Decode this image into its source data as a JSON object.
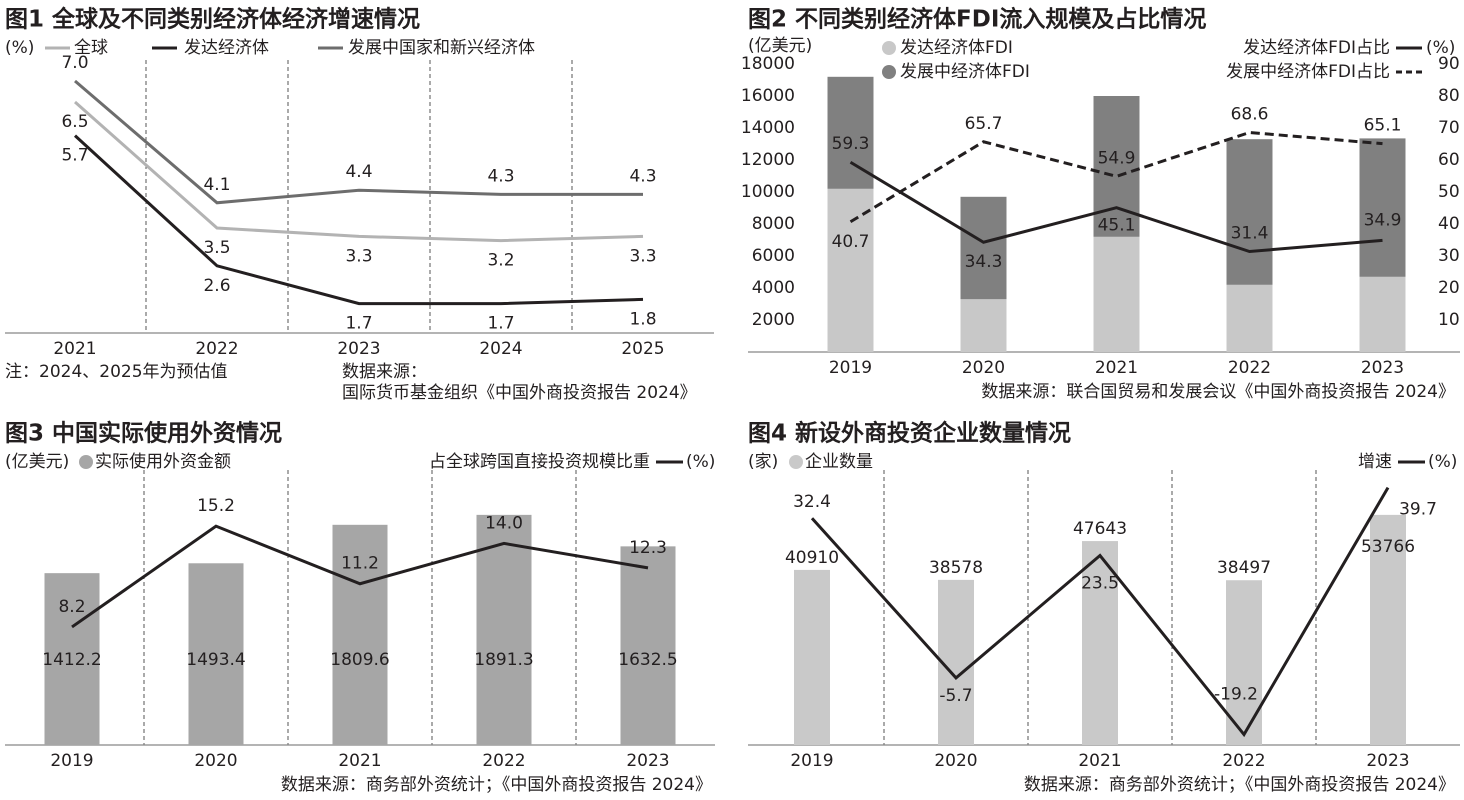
{
  "chart_data": [
    {
      "type": "line",
      "title": "图1 全球及不同类别经济体经济增速情况",
      "unit_label": "(%)",
      "categories": [
        "2021",
        "2022",
        "2023",
        "2024",
        "2025"
      ],
      "series": [
        {
          "name": "全球",
          "color": "#b3b3b3",
          "values": [
            6.5,
            3.5,
            3.3,
            3.2,
            3.3
          ]
        },
        {
          "name": "发达经济体",
          "color": "#231f20",
          "values": [
            5.7,
            2.6,
            1.7,
            1.7,
            1.8
          ]
        },
        {
          "name": "发展中国家和新兴经济体",
          "color": "#6d6d6d",
          "values": [
            7.0,
            4.1,
            4.4,
            4.3,
            4.3
          ],
          "value_labels": [
            "7.0",
            "4.1",
            "4.4",
            "4.3",
            "4.3"
          ]
        }
      ],
      "ylim": [
        1,
        7.5
      ],
      "note": "注：2024、2025年为预估值",
      "source": [
        "数据来源：",
        "国际货币基金组织《中国外商投资报告 2024》"
      ]
    },
    {
      "type": "stacked_bar_line",
      "title": "图2 不同类别经济体FDI流入规模及占比情况",
      "y_label": "(亿美元)",
      "y2_label": "(%)",
      "categories": [
        "2019",
        "2020",
        "2021",
        "2022",
        "2023"
      ],
      "series": [
        {
          "name": "发达经济体FDI",
          "color": "#c8c8c8",
          "values": [
            10200,
            3300,
            7200,
            4200,
            4700
          ]
        },
        {
          "name": "发展中经济体FDI",
          "color": "#808080",
          "values": [
            7000,
            6400,
            8800,
            9100,
            8650
          ]
        },
        {
          "name": "发达经济体FDI占比",
          "color": "#231f20",
          "axis": "y2",
          "line_style": "solid",
          "values": [
            59.3,
            34.3,
            45.1,
            31.4,
            34.9
          ]
        },
        {
          "name": "发展中经济体FDI占比",
          "color": "#231f20",
          "axis": "y2",
          "line_style": "dashed",
          "values": [
            40.7,
            65.7,
            54.9,
            68.6,
            65.1
          ]
        }
      ],
      "ylim": [
        0,
        18000
      ],
      "yticks": [
        2000,
        4000,
        6000,
        8000,
        10000,
        12000,
        14000,
        16000,
        18000
      ],
      "y2lim": [
        0,
        90
      ],
      "y2ticks": [
        10,
        20,
        30,
        40,
        50,
        60,
        70,
        80,
        90
      ],
      "source": "数据来源：联合国贸易和发展会议《中国外商投资报告 2024》"
    },
    {
      "type": "bar_line",
      "title": "图3 中国实际使用外资情况",
      "y_label": "(亿美元)",
      "y2_label": "(%)",
      "categories": [
        "2019",
        "2020",
        "2021",
        "2022",
        "2023"
      ],
      "series": [
        {
          "name": "实际使用外资金额",
          "color": "#a6a6a6",
          "values": [
            1412.2,
            1493.4,
            1809.6,
            1891.3,
            1632.5
          ]
        },
        {
          "name": "占全球跨国直接投资规模比重",
          "color": "#231f20",
          "axis": "y2",
          "values": [
            8.2,
            15.2,
            11.2,
            14.0,
            12.3
          ],
          "value_labels": [
            "8.2",
            "15.2",
            "11.2",
            "14.0",
            "12.3"
          ]
        }
      ],
      "ylim": [
        0,
        2260
      ],
      "y2lim": [
        0,
        19.1
      ],
      "source": "数据来源：商务部外资统计；《中国外商投资报告 2024》"
    },
    {
      "type": "bar_line",
      "title": "图4 新设外商投资企业数量情况",
      "y_label": "(家)",
      "y2_label": "(%)",
      "categories": [
        "2019",
        "2020",
        "2021",
        "2022",
        "2023"
      ],
      "series": [
        {
          "name": "企业数量",
          "color": "#c9c9c9",
          "values": [
            40910,
            38578,
            47643,
            38497,
            53766
          ]
        },
        {
          "name": "增速",
          "color": "#231f20",
          "axis": "y2",
          "values": [
            32.4,
            -5.7,
            23.5,
            -19.2,
            39.7
          ]
        }
      ],
      "ylim": [
        0,
        64250
      ],
      "y2lim": [
        -21.7,
        43.9
      ],
      "source": "数据来源：商务部外资统计；《中国外商投资报告 2024》"
    }
  ]
}
